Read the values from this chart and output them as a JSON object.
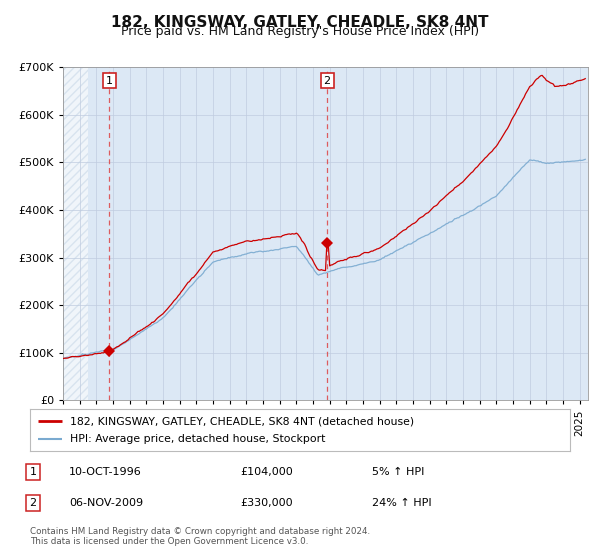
{
  "title": "182, KINGSWAY, GATLEY, CHEADLE, SK8 4NT",
  "subtitle": "Price paid vs. HM Land Registry's House Price Index (HPI)",
  "xlim": [
    1994.0,
    2025.5
  ],
  "ylim": [
    0,
    700000
  ],
  "yticks": [
    0,
    100000,
    200000,
    300000,
    400000,
    500000,
    600000,
    700000
  ],
  "sale1_x": 1996.78,
  "sale1_y": 104000,
  "sale1_label": "1",
  "sale2_x": 2009.85,
  "sale2_y": 330000,
  "sale2_label": "2",
  "property_color": "#cc0000",
  "hpi_color": "#7aaad0",
  "plot_bg_color": "#dce8f5",
  "hatch_color": "#c8d8e8",
  "legend_line1": "182, KINGSWAY, GATLEY, CHEADLE, SK8 4NT (detached house)",
  "legend_line2": "HPI: Average price, detached house, Stockport",
  "table_row1": [
    "1",
    "10-OCT-1996",
    "£104,000",
    "5% ↑ HPI"
  ],
  "table_row2": [
    "2",
    "06-NOV-2009",
    "£330,000",
    "24% ↑ HPI"
  ],
  "footnote": "Contains HM Land Registry data © Crown copyright and database right 2024.\nThis data is licensed under the Open Government Licence v3.0.",
  "title_fontsize": 11,
  "subtitle_fontsize": 9,
  "tick_fontsize": 7.5,
  "grid_color": "#c0cce0",
  "vline_color": "#dd4444"
}
